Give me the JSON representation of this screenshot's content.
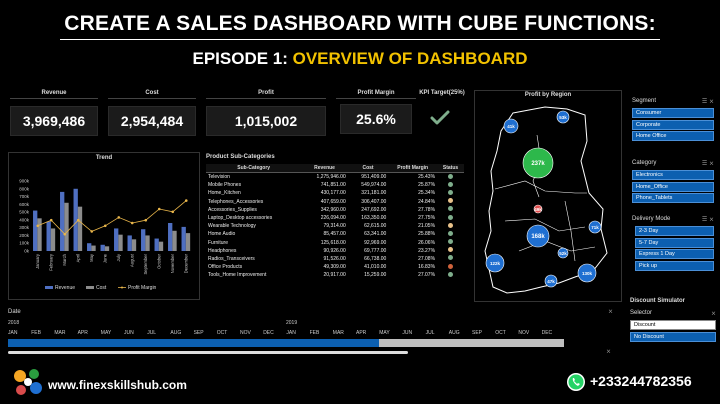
{
  "header": {
    "title": "CREATE A SALES DASHBOARD WITH CUBE FUNCTIONS:",
    "episode_prefix": "EPISODE 1: ",
    "episode_highlight": "OVERVIEW OF DASHBOARD"
  },
  "kpis": {
    "revenue": {
      "label": "Revenue",
      "value": "3,969,486"
    },
    "cost": {
      "label": "Cost",
      "value": "2,954,484"
    },
    "profit": {
      "label": "Profit",
      "value": "1,015,002"
    },
    "margin": {
      "label": "Profit Margin",
      "value": "25.6%"
    },
    "target": {
      "label": "KPI Target(25%)",
      "icon": "checkmark-icon"
    }
  },
  "trend": {
    "title": "Trend",
    "legend": [
      "Revenue",
      "Cost",
      "Profit Margin"
    ]
  },
  "chart_data": {
    "type": "bar",
    "title": "Trend",
    "categories": [
      "January",
      "February",
      "March",
      "April",
      "May",
      "June",
      "July",
      "August",
      "September",
      "October",
      "November",
      "December"
    ],
    "yticks": [
      "0k",
      "100k",
      "200k",
      "300k",
      "400k",
      "500k",
      "600k",
      "700k",
      "800k",
      "900k"
    ],
    "ylim": [
      0,
      900000
    ],
    "series": [
      {
        "name": "Revenue",
        "values": [
          520000,
          380000,
          760000,
          800000,
          100000,
          80000,
          290000,
          200000,
          280000,
          160000,
          360000,
          310000
        ]
      },
      {
        "name": "Cost",
        "values": [
          420000,
          290000,
          620000,
          570000,
          70000,
          60000,
          210000,
          150000,
          200000,
          120000,
          260000,
          230000
        ]
      },
      {
        "name": "Profit Margin",
        "values": [
          24,
          26,
          21,
          26,
          22,
          24,
          27,
          25,
          26,
          30,
          29,
          33
        ]
      }
    ],
    "colors": {
      "Revenue": "#4f6fc1",
      "Cost": "#8c8c8c",
      "Profit Margin": "#e8b54a"
    }
  },
  "products": {
    "title": "Product Sub-Categories",
    "columns": [
      "Sub-Category",
      "Revenue",
      "Cost",
      "Profit Margin",
      "Status"
    ],
    "rows": [
      [
        "Television",
        "1,275,946.00",
        "951,409.00",
        "25.43%",
        "#7fae8c"
      ],
      [
        "Mobile Phones",
        "741,851.00",
        "549,974.00",
        "25.87%",
        "#7fae8c"
      ],
      [
        "Home_Kitchen",
        "430,177.00",
        "321,181.00",
        "25.34%",
        "#7fae8c"
      ],
      [
        "Telephones_Accessories",
        "407,659.00",
        "306,407.00",
        "24.84%",
        "#e9c28a"
      ],
      [
        "Accessories_Supplies",
        "342,960.00",
        "247,692.00",
        "27.78%",
        "#7fae8c"
      ],
      [
        "Laptop_Desktop accessories",
        "226,094.00",
        "163,350.00",
        "27.75%",
        "#7fae8c"
      ],
      [
        "Wearable Technology",
        "79,314.00",
        "62,615.00",
        "21.05%",
        "#e9c28a"
      ],
      [
        "Home Audio",
        "85,457.00",
        "63,341.00",
        "25.88%",
        "#7fae8c"
      ],
      [
        "Furniture",
        "125,618.00",
        "92,969.00",
        "26.06%",
        "#7fae8c"
      ],
      [
        "Headphones",
        "90,926.00",
        "69,777.00",
        "23.27%",
        "#e9c28a"
      ],
      [
        "Radios_Transceivers",
        "91,526.00",
        "66,738.00",
        "27.08%",
        "#7fae8c"
      ],
      [
        "Office Products",
        "49,309.00",
        "41,010.00",
        "16.83%",
        "#d0633c"
      ],
      [
        "Tools_Home Improvement",
        "20,917.00",
        "15,259.00",
        "27.07%",
        "#7fae8c"
      ]
    ]
  },
  "map": {
    "title": "Profit by Region",
    "bubbles": [
      "41k",
      "53k",
      "237k",
      "49k",
      "71k",
      "168k",
      "52k",
      "122k",
      "47k",
      "130k"
    ]
  },
  "slicers": {
    "segment": {
      "title": "Segment",
      "items": [
        "Consumer",
        "Corporate",
        "Home Office"
      ]
    },
    "category": {
      "title": "Category",
      "items": [
        "Electronics",
        "Home_Office",
        "Phone_Tablets"
      ]
    },
    "delivery": {
      "title": "Delivery Mode",
      "items": [
        "2-3 Day",
        "5-7 Day",
        "Express 1 Day",
        "Pick up"
      ]
    },
    "discount": {
      "title": "Discount Simulator",
      "selector_label": "Selector",
      "items": [
        "Discount",
        "No Discount"
      ]
    }
  },
  "timeline": {
    "label": "Date",
    "year1": "2018",
    "year2": "2019",
    "months": [
      "JAN",
      "FEB",
      "MAR",
      "APR",
      "MAY",
      "JUN",
      "JUL",
      "AUG",
      "SEP",
      "OCT",
      "NOV",
      "DEC",
      "JAN",
      "FEB",
      "MAR",
      "APR",
      "MAY",
      "JUN",
      "JUL",
      "AUG",
      "SEP",
      "OCT",
      "NOV",
      "DEC"
    ],
    "selected_months": 16
  },
  "footer": {
    "url": "www.finexskillshub.com",
    "phone": "+233244782356"
  }
}
